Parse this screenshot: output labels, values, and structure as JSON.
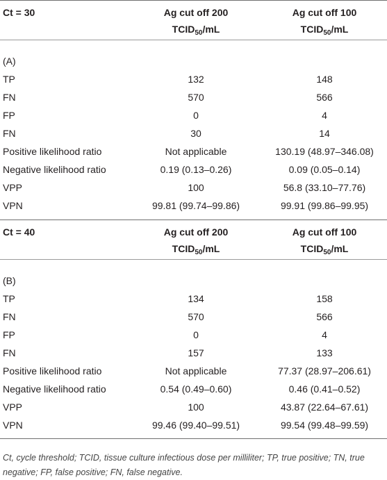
{
  "sections": [
    {
      "ct": "Ct = 30",
      "columns": [
        {
          "line1": "Ag cut off 200",
          "unit_main": "TCID",
          "unit_sub": "50",
          "unit_tail": "/mL"
        },
        {
          "line1": "Ag cut off 100",
          "unit_main": "TCID",
          "unit_sub": "50",
          "unit_tail": "/mL"
        }
      ],
      "label": "(A)",
      "rows": [
        [
          "TP",
          "132",
          "148"
        ],
        [
          "FN",
          "570",
          "566"
        ],
        [
          "FP",
          "0",
          "4"
        ],
        [
          "FN",
          "30",
          "14"
        ],
        [
          "Positive likelihood ratio",
          "Not applicable",
          "130.19 (48.97–346.08)"
        ],
        [
          "Negative likelihood ratio",
          "0.19 (0.13–0.26)",
          "0.09 (0.05–0.14)"
        ],
        [
          "VPP",
          "100",
          "56.8 (33.10–77.76)"
        ],
        [
          "VPN",
          "99.81 (99.74–99.86)",
          "99.91 (99.86–99.95)"
        ]
      ]
    },
    {
      "ct": "Ct = 40",
      "columns": [
        {
          "line1": "Ag cut off 200",
          "unit_main": "TCID",
          "unit_sub": "50",
          "unit_tail": "/mL"
        },
        {
          "line1": "Ag cut off 100",
          "unit_main": "TCID",
          "unit_sub": "50",
          "unit_tail": "/mL"
        }
      ],
      "label": "(B)",
      "rows": [
        [
          "TP",
          "134",
          "158"
        ],
        [
          "FN",
          "570",
          "566"
        ],
        [
          "FP",
          "0",
          "4"
        ],
        [
          "FN",
          "157",
          "133"
        ],
        [
          "Positive likelihood ratio",
          "Not applicable",
          "77.37 (28.97–206.61)"
        ],
        [
          "Negative likelihood ratio",
          "0.54 (0.49–0.60)",
          "0.46 (0.41–0.52)"
        ],
        [
          "VPP",
          "100",
          "43.87 (22.64–67.61)"
        ],
        [
          "VPN",
          "99.46 (99.40–99.51)",
          "99.54 (99.48–99.59)"
        ]
      ]
    }
  ],
  "footnote": "Ct, cycle threshold; TCID, tissue culture infectious dose per milliliter; TP, true positive; TN, true negative; FP, false positive; FN, false negative."
}
